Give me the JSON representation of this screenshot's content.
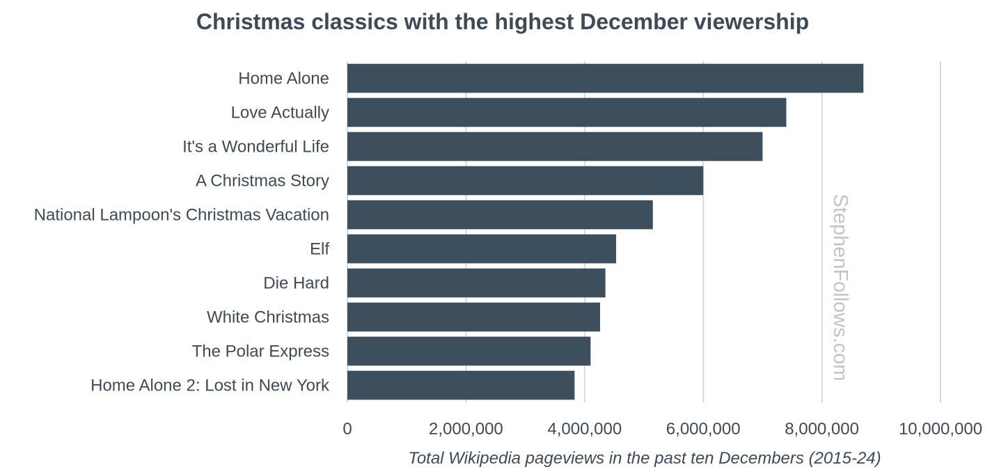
{
  "chart_data": {
    "type": "bar",
    "orientation": "horizontal",
    "title": "Christmas classics with the highest December viewership",
    "xlabel": "Total Wikipedia pageviews in the past ten Decembers (2015-24)",
    "ylabel": "",
    "categories": [
      "Home Alone",
      "Love Actually",
      "It's a Wonderful Life",
      "A Christmas Story",
      "National Lampoon's Christmas Vacation",
      "Elf",
      "Die Hard",
      "White Christmas",
      "The Polar Express",
      "Home Alone 2: Lost in New York"
    ],
    "values": [
      8700000,
      7400000,
      7000000,
      6000000,
      5150000,
      4530000,
      4350000,
      4260000,
      4100000,
      3830000
    ],
    "xlim": [
      0,
      10000000
    ],
    "xticks": [
      "0",
      "2,000,000",
      "4,000,000",
      "6,000,000",
      "8,000,000",
      "10,000,000"
    ],
    "grid": true,
    "legend": "none",
    "bar_color": "#3d4f5d",
    "watermark": "StephenFollows.com"
  }
}
